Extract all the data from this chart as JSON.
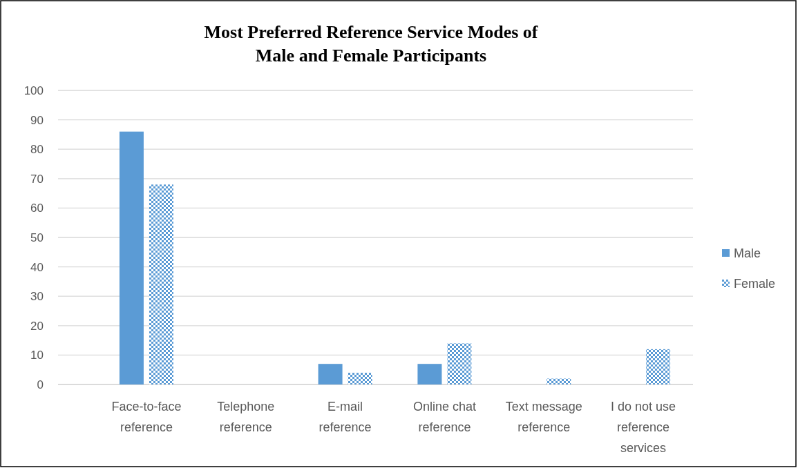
{
  "chart_data": {
    "type": "bar",
    "title": "Most Preferred Reference Service Modes of\nMale and Female Participants",
    "categories": [
      "Face-to-face reference",
      "Telephone reference",
      "E-mail reference",
      "Online chat reference",
      "Text message reference",
      "I do not use reference services"
    ],
    "series": [
      {
        "name": "Male",
        "color": "#5b9bd5",
        "values": [
          86,
          0,
          7,
          7,
          0,
          0
        ]
      },
      {
        "name": "Female",
        "color": "#5b9bd5",
        "values": [
          68,
          0,
          4,
          14,
          2,
          12
        ]
      }
    ],
    "ylim": [
      0,
      100
    ],
    "yticks": [
      0,
      10,
      20,
      30,
      40,
      50,
      60,
      70,
      80,
      90,
      100
    ],
    "grid": "y",
    "legend": "right"
  }
}
